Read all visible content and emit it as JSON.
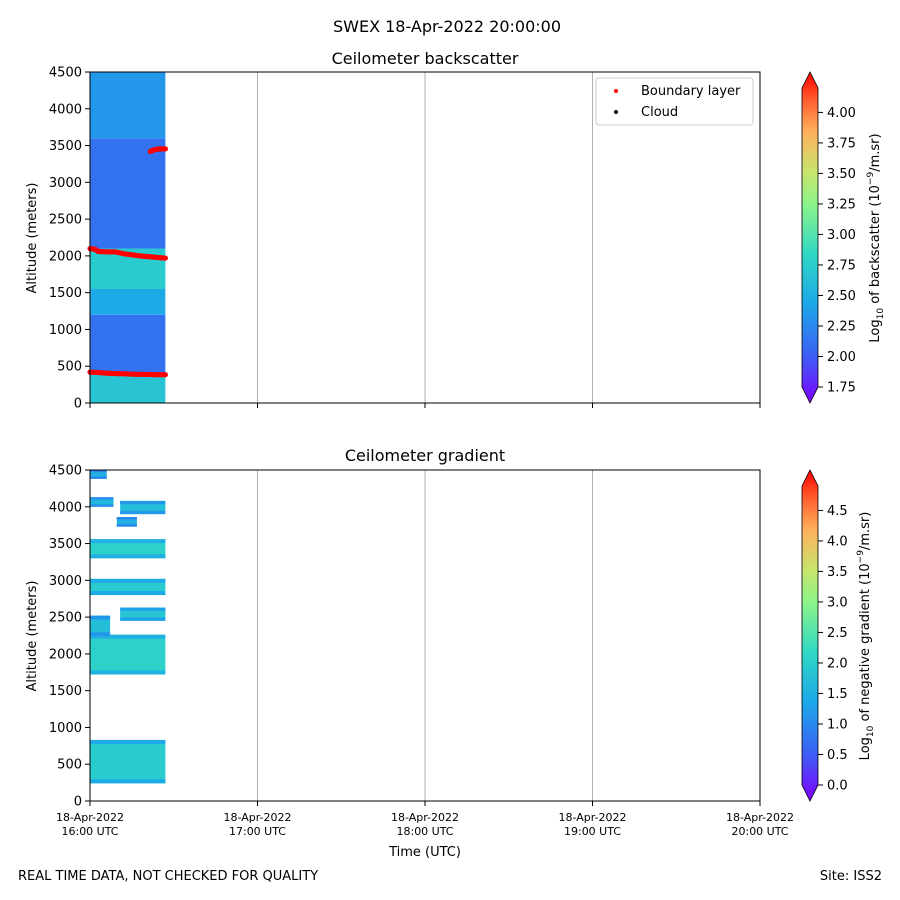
{
  "suptitle": "SWEX 18-Apr-2022 20:00:00",
  "footer": {
    "left": "REAL TIME DATA, NOT CHECKED FOR QUALITY",
    "right": "Site: ISS2"
  },
  "chart_data": [
    {
      "type": "heatmap",
      "title": "Ceilometer backscatter",
      "ylabel": "Altitude (meters)",
      "ylim": [
        0,
        4500
      ],
      "yticks": [
        0,
        500,
        1000,
        1500,
        2000,
        2500,
        3000,
        3500,
        4000,
        4500
      ],
      "xlim_hours_utc": [
        16.0,
        20.0
      ],
      "data_extent_hours_utc": [
        16.0,
        16.45
      ],
      "colorbar": {
        "label_prefix": "Log",
        "label_sub": "10",
        "label_mid": " of backscatter (10",
        "label_sup": "−9",
        "label_end": "/m.sr)",
        "ticks": [
          "1.75",
          "2.00",
          "2.25",
          "2.50",
          "2.75",
          "3.00",
          "3.25",
          "3.50",
          "3.75",
          "4.00"
        ],
        "range": [
          1.75,
          4.2
        ]
      },
      "legend": {
        "placement": "top-right",
        "entries": [
          {
            "label": "Boundary layer",
            "color": "#ff0000"
          },
          {
            "label": "Cloud",
            "color": "#000000"
          }
        ]
      },
      "field_bands": [
        {
          "from": 0,
          "to": 400,
          "value": 2.7
        },
        {
          "from": 400,
          "to": 1200,
          "value": 2.2
        },
        {
          "from": 1200,
          "to": 1550,
          "value": 2.5
        },
        {
          "from": 1550,
          "to": 2100,
          "value": 2.75
        },
        {
          "from": 2100,
          "to": 3600,
          "value": 2.2
        },
        {
          "from": 3600,
          "to": 4500,
          "value": 2.4
        }
      ],
      "boundary_layer": [
        {
          "name": "BL1",
          "x": [
            16.0,
            16.05,
            16.1,
            16.15,
            16.2,
            16.25,
            16.3,
            16.35,
            16.4,
            16.45
          ],
          "y": [
            420,
            415,
            405,
            400,
            398,
            392,
            390,
            388,
            385,
            385
          ]
        },
        {
          "name": "BL2",
          "x": [
            16.0,
            16.03,
            16.05,
            16.1,
            16.15,
            16.2,
            16.25,
            16.3,
            16.35,
            16.4,
            16.45
          ],
          "y": [
            2100,
            2090,
            2060,
            2055,
            2055,
            2030,
            2015,
            2000,
            1990,
            1980,
            1970
          ]
        },
        {
          "name": "BL3",
          "x": [
            16.36,
            16.38,
            16.41,
            16.45
          ],
          "y": [
            3420,
            3440,
            3455,
            3455
          ]
        }
      ]
    },
    {
      "type": "heatmap",
      "title": "Ceilometer gradient",
      "ylabel": "Altitude (meters)",
      "xlabel": "Time (UTC)",
      "ylim": [
        0,
        4500
      ],
      "yticks": [
        0,
        500,
        1000,
        1500,
        2000,
        2500,
        3000,
        3500,
        4000,
        4500
      ],
      "xlim_hours_utc": [
        16.0,
        20.0
      ],
      "xticks": [
        {
          "hour": 16,
          "line1": "18-Apr-2022",
          "line2": "16:00 UTC"
        },
        {
          "hour": 17,
          "line1": "18-Apr-2022",
          "line2": "17:00 UTC"
        },
        {
          "hour": 18,
          "line1": "18-Apr-2022",
          "line2": "18:00 UTC"
        },
        {
          "hour": 19,
          "line1": "18-Apr-2022",
          "line2": "19:00 UTC"
        },
        {
          "hour": 20,
          "line1": "18-Apr-2022",
          "line2": "20:00 UTC"
        }
      ],
      "colorbar": {
        "label_prefix": "Log",
        "label_sub": "10",
        "label_mid": " of negative gradient (10",
        "label_sup": "−9",
        "label_end": "/m.sr)",
        "ticks": [
          "0.0",
          "0.5",
          "1.0",
          "1.5",
          "2.0",
          "2.5",
          "3.0",
          "3.5",
          "4.0",
          "4.5"
        ],
        "range": [
          0.0,
          4.9
        ]
      },
      "patches": [
        {
          "x0": 16.0,
          "x1": 16.45,
          "y0": 240,
          "y1": 830,
          "value": 2.0
        },
        {
          "x0": 16.0,
          "x1": 16.45,
          "y0": 1720,
          "y1": 2260,
          "value": 2.1
        },
        {
          "x0": 16.0,
          "x1": 16.12,
          "y0": 2240,
          "y1": 2520,
          "value": 1.8
        },
        {
          "x0": 16.18,
          "x1": 16.45,
          "y0": 2450,
          "y1": 2630,
          "value": 1.9
        },
        {
          "x0": 16.0,
          "x1": 16.45,
          "y0": 2800,
          "y1": 3020,
          "value": 2.0
        },
        {
          "x0": 16.0,
          "x1": 16.45,
          "y0": 3300,
          "y1": 3560,
          "value": 2.1
        },
        {
          "x0": 16.18,
          "x1": 16.45,
          "y0": 3900,
          "y1": 4080,
          "value": 1.8
        },
        {
          "x0": 16.0,
          "x1": 16.14,
          "y0": 4000,
          "y1": 4130,
          "value": 1.7
        },
        {
          "x0": 16.16,
          "x1": 16.28,
          "y0": 3730,
          "y1": 3860,
          "value": 1.6
        },
        {
          "x0": 16.0,
          "x1": 16.1,
          "y0": 4380,
          "y1": 4500,
          "value": 1.6
        }
      ]
    }
  ]
}
